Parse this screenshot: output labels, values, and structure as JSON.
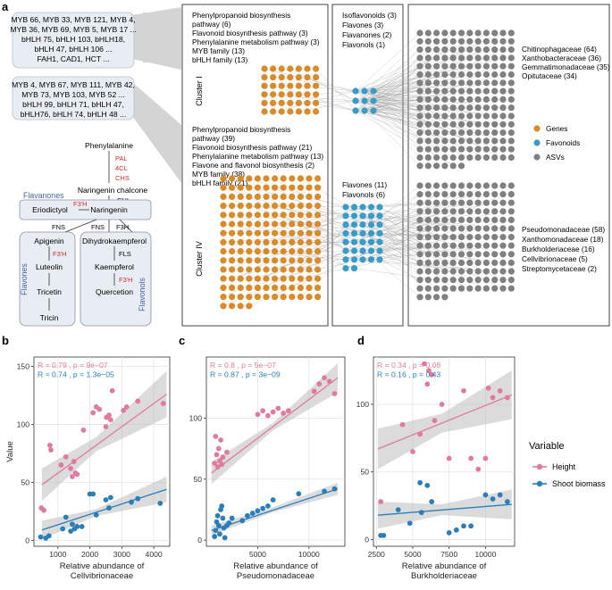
{
  "panel_labels": {
    "a": "a",
    "b": "b",
    "c": "c",
    "d": "d"
  },
  "panel_a": {
    "gene_box_1": [
      "MYB 66, MYB 33, MYB 121, MYB 4,",
      "MYB 36, MYB 69, MYB 5, MYB 17 ...",
      "bHLH 75, bHLH 103, bHLH18,",
      "bHLH 47, bHLH 106 ...",
      "FAH1, CAD1, HCT ..."
    ],
    "gene_box_2": [
      "MYB 4, MYB 67, MYB 111, MYB 42,",
      "MYB 73, MYB 103, MYB 52 ...",
      "bHLH 99, bHLH 71, bHLH 47,",
      "bHLH76, bHLH 74, bHLH 48 ..."
    ],
    "pathway": {
      "phenylalanine": "Phenylalanine",
      "enzymes_top": [
        "PAL",
        "4CL",
        "CHS"
      ],
      "naringenin_chalcone": "Naringenin chalcone",
      "chi": "CHI",
      "flavanones_label": "Flavanones",
      "eriodictyol": "Eriodictyol",
      "naringenin": "Naringenin",
      "f3h_prime_top": "F3'H",
      "fns_left": "FNS",
      "fns_right": "FNS",
      "f3h": "F3H",
      "apigenin": "Apigenin",
      "f3h_prime_mid": "F3'H",
      "luteolin": "Luteolin",
      "tricetin": "Tricetin",
      "tricin": "Tricin",
      "flavones_side": "Flavones",
      "dihydrokaempferol": "Dihydrokaempferol",
      "fls": "FLS",
      "kaempferol": "Kaempferol",
      "f3h_prime_bottom": "F3'H",
      "quercetion": "Quercetion",
      "flavonols_side": "Flavonols"
    },
    "cluster1_label": "Cluster I",
    "cluster4_label": "Cluster IV",
    "cluster1_terms": [
      "Phenylpropanoid biosynthesis",
      "pathway (6)",
      "Flavonoid biosynthesis pathway (3)",
      "Phenylalanine metabolism pathway (3)",
      "MYB  family (13)",
      "bHLH family (13)"
    ],
    "cluster4_terms": [
      "Phenylpropanoid biosynthesis",
      "pathway (39)",
      "Flavonoid biosynthesis pathway (21)",
      "Phenylalanine metabolism pathway (13)",
      "Flavone and flavonol biosynthesis (2)",
      "MYB  family (38)",
      "bHLH family (21)"
    ],
    "flav_terms_1": [
      "Isoflavonoids (3)",
      "Flavones (3)",
      "Flavanones (2)",
      "Flavonols (1)"
    ],
    "flav_terms_4": [
      "Flavones (11)",
      "Flavonols (6)"
    ],
    "asv_terms_1": [
      "Chitinophagaceae (64)",
      "Xanthobacteraceae (36)",
      "Gemmatimonadaceae (35)",
      "Opitutaceae (34)"
    ],
    "asv_terms_4": [
      "Pseudomonadaceae (58)",
      "Xanthomonadaceae (18)",
      "Burkholderiaceae (16)",
      "Cellvibrionaceae (5)",
      "Streptomycetaceae (2)"
    ],
    "legend": [
      {
        "label": "Genes",
        "color": "#d98a2b"
      },
      {
        "label": "Favonoids",
        "color": "#3a9bc7"
      },
      {
        "label": "ASVs",
        "color": "#808080"
      }
    ]
  },
  "chart_data": [
    {
      "panel": "b",
      "type": "scatter",
      "xlabel": "Relative abundance of\nCellvibrionaceae",
      "ylabel": "Value",
      "xlim": [
        250,
        4500
      ],
      "ylim": [
        -5,
        158
      ],
      "xticks": [
        1000,
        2000,
        3000,
        4000
      ],
      "yticks": [
        0,
        50,
        100,
        150
      ],
      "stats": [
        {
          "series": "Height",
          "text": "R = 0.79 ,  p = 9e−07"
        },
        {
          "series": "Shoot biomass",
          "text": "R = 0.74 ,  p = 1.3e−05"
        }
      ],
      "series": [
        {
          "name": "Height",
          "color": "#e07a9e",
          "x": [
            480,
            560,
            750,
            780,
            1100,
            1250,
            1400,
            1450,
            1500,
            1550,
            1600,
            1800,
            2100,
            2200,
            2300,
            2500,
            2520,
            2600,
            2650,
            2700,
            3050,
            3150,
            3500,
            4300
          ],
          "y": [
            28,
            26,
            82,
            78,
            65,
            72,
            62,
            55,
            68,
            58,
            57,
            95,
            110,
            115,
            113,
            98,
            106,
            108,
            104,
            129,
            112,
            115,
            120,
            118
          ],
          "fit": [
            [
              500,
              48
            ],
            [
              4400,
              126
            ]
          ],
          "band": [
            [
              500,
              34,
              62
            ],
            [
              2200,
              77,
              89
            ],
            [
              4400,
              106,
              146
            ]
          ]
        },
        {
          "name": "Shoot biomass",
          "color": "#2b7fb8",
          "x": [
            460,
            620,
            720,
            1150,
            1250,
            1400,
            1450,
            1520,
            1600,
            1750,
            2000,
            2100,
            2200,
            2500,
            2600,
            2650,
            3300,
            3500,
            4200
          ],
          "y": [
            3,
            2,
            4,
            10,
            20,
            8,
            14,
            10,
            12,
            12,
            40,
            40,
            22,
            35,
            28,
            37,
            33,
            36,
            32
          ],
          "fit": [
            [
              500,
              9
            ],
            [
              4400,
              44
            ]
          ],
          "band": [
            [
              500,
              1,
              17
            ],
            [
              2200,
              21,
              27
            ],
            [
              4400,
              33,
              55
            ]
          ]
        }
      ]
    },
    {
      "panel": "c",
      "type": "scatter",
      "xlabel": "Relative abundance of\nPseudomonadaceae",
      "ylabel": "",
      "xlim": [
        0,
        13500
      ],
      "ylim": [
        -5,
        150
      ],
      "xticks": [
        5000,
        10000
      ],
      "yticks": [
        0,
        50,
        100
      ],
      "stats": [
        {
          "series": "Height",
          "text": "R = 0.8 ,  p = 5e−07"
        },
        {
          "series": "Shoot biomass",
          "text": "R = 0.87 ,  p = 3e−09"
        }
      ],
      "series": [
        {
          "name": "Height",
          "color": "#e07a9e",
          "x": [
            800,
            900,
            1000,
            1100,
            1200,
            1300,
            1400,
            1500,
            1600,
            2000,
            5000,
            5500,
            6000,
            6500,
            7000,
            7500,
            8000,
            10500,
            11000,
            11500,
            12000,
            12500
          ],
          "y": [
            63,
            85,
            70,
            60,
            75,
            65,
            82,
            62,
            68,
            72,
            103,
            106,
            102,
            105,
            108,
            104,
            106,
            122,
            128,
            133,
            130,
            120
          ],
          "fit": [
            [
              500,
              55
            ],
            [
              12800,
              133
            ]
          ],
          "band": [
            [
              500,
              46,
              64
            ],
            [
              6500,
              90,
              96
            ],
            [
              12800,
              121,
              145
            ]
          ]
        },
        {
          "name": "Shoot biomass",
          "color": "#2b7fb8",
          "x": [
            800,
            900,
            1000,
            1100,
            1200,
            1300,
            1400,
            1500,
            1600,
            1700,
            1800,
            2000,
            2200,
            2500,
            3500,
            4000,
            4500,
            5000,
            5500,
            6000,
            6500,
            9000,
            11500,
            12500
          ],
          "y": [
            3,
            8,
            15,
            20,
            12,
            5,
            25,
            28,
            18,
            10,
            2,
            12,
            14,
            18,
            16,
            20,
            22,
            24,
            26,
            28,
            33,
            38,
            40,
            42
          ],
          "fit": [
            [
              500,
              8
            ],
            [
              12800,
              42
            ]
          ],
          "band": [
            [
              500,
              4,
              12
            ],
            [
              6500,
              23,
              27
            ],
            [
              12800,
              37,
              47
            ]
          ]
        }
      ]
    },
    {
      "panel": "d",
      "type": "scatter",
      "xlabel": "Relative abundance of\nBurkholderiaceae",
      "ylabel": "",
      "xlim": [
        2300,
        12000
      ],
      "ylim": [
        -5,
        135
      ],
      "xticks": [
        2500,
        5000,
        7500,
        10000
      ],
      "yticks": [
        0,
        50,
        100
      ],
      "stats": [
        {
          "series": "Height",
          "text": "R = 0.34 ,  p = 0.08"
        },
        {
          "series": "Shoot biomass",
          "text": "R = 0.16 ,  p = 0.43"
        }
      ],
      "series": [
        {
          "name": "Height",
          "color": "#e07a9e",
          "x": [
            2800,
            4300,
            5000,
            5500,
            5800,
            6000,
            6100,
            6300,
            6500,
            7000,
            7500,
            8500,
            9000,
            9500,
            10000,
            10200,
            10500,
            11000,
            11500
          ],
          "y": [
            28,
            85,
            65,
            78,
            130,
            115,
            125,
            122,
            88,
            100,
            60,
            110,
            60,
            52,
            60,
            112,
            105,
            110,
            105
          ],
          "fit": [
            [
              2600,
              67
            ],
            [
              11800,
              107
            ]
          ],
          "band": [
            [
              2600,
              52,
              82
            ],
            [
              7000,
              79,
              93
            ],
            [
              11800,
              89,
              125
            ]
          ]
        },
        {
          "name": "Shoot biomass",
          "color": "#2b7fb8",
          "x": [
            2800,
            3000,
            4000,
            4800,
            5500,
            5600,
            6000,
            6300,
            7500,
            8000,
            8500,
            9000,
            10000,
            10500,
            11000,
            11500
          ],
          "y": [
            3,
            3,
            22,
            12,
            42,
            20,
            40,
            28,
            5,
            7,
            10,
            10,
            33,
            30,
            33,
            28
          ],
          "fit": [
            [
              2600,
              18
            ],
            [
              11800,
              26
            ]
          ],
          "band": [
            [
              2600,
              8,
              28
            ],
            [
              7000,
              18,
              26
            ],
            [
              11800,
              15,
              37
            ]
          ]
        }
      ]
    }
  ],
  "legend_right": {
    "title": "Variable",
    "items": [
      {
        "label": "Height",
        "color": "#e07a9e"
      },
      {
        "label": "Shoot biomass",
        "color": "#2b7fb8"
      }
    ]
  }
}
